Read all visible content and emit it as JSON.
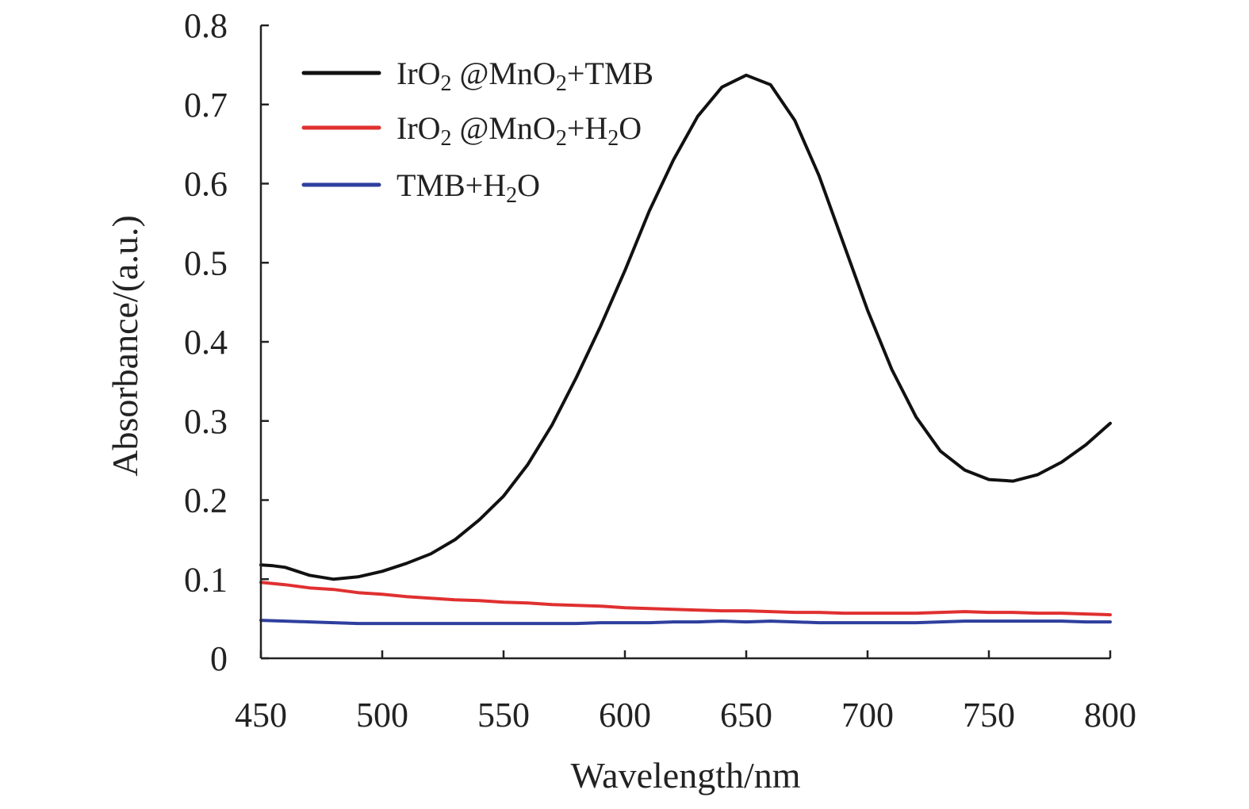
{
  "chart_data": {
    "type": "line",
    "title": "",
    "xlabel": "Wavelength/nm",
    "ylabel": "Absorbance/(a.u.)",
    "xlim": [
      450,
      800
    ],
    "ylim": [
      0,
      0.8
    ],
    "xticks": [
      450,
      500,
      550,
      600,
      650,
      700,
      750,
      800
    ],
    "yticks": [
      0,
      0.1,
      0.2,
      0.3,
      0.4,
      0.5,
      0.6,
      0.7,
      0.8
    ],
    "xtick_labels": [
      "450",
      "500",
      "550",
      "600",
      "650",
      "700",
      "750",
      "800"
    ],
    "ytick_labels": [
      "0",
      "0.1",
      "0.2",
      "0.3",
      "0.4",
      "0.5",
      "0.6",
      "0.7",
      "0.8"
    ],
    "grid": false,
    "legend_position": "top-left",
    "series": [
      {
        "name": "IrO2 @MnO2+TMB",
        "legend": {
          "parts": [
            [
              "IrO",
              ""
            ],
            [
              "2",
              "sub"
            ],
            [
              " @MnO",
              ""
            ],
            [
              "2",
              "sub"
            ],
            [
              "+TMB",
              ""
            ]
          ]
        },
        "color": "#111111",
        "x": [
          450,
          455,
          460,
          470,
          480,
          490,
          500,
          510,
          520,
          530,
          540,
          550,
          560,
          570,
          580,
          590,
          600,
          610,
          620,
          630,
          640,
          650,
          660,
          670,
          680,
          690,
          700,
          710,
          720,
          730,
          740,
          750,
          760,
          770,
          780,
          790,
          800
        ],
        "values": [
          0.118,
          0.117,
          0.115,
          0.105,
          0.1,
          0.103,
          0.11,
          0.12,
          0.132,
          0.15,
          0.175,
          0.205,
          0.245,
          0.295,
          0.355,
          0.42,
          0.49,
          0.565,
          0.63,
          0.685,
          0.722,
          0.737,
          0.725,
          0.68,
          0.61,
          0.525,
          0.44,
          0.365,
          0.305,
          0.262,
          0.238,
          0.226,
          0.224,
          0.232,
          0.248,
          0.27,
          0.297
        ]
      },
      {
        "name": "IrO2 @MnO2+H2O",
        "legend": {
          "parts": [
            [
              "IrO",
              ""
            ],
            [
              "2",
              "sub"
            ],
            [
              " @MnO",
              ""
            ],
            [
              "2",
              "sub"
            ],
            [
              "+H",
              ""
            ],
            [
              "2",
              "sub"
            ],
            [
              "O",
              ""
            ]
          ]
        },
        "color": "#e03030",
        "x": [
          450,
          460,
          470,
          480,
          490,
          500,
          510,
          520,
          530,
          540,
          550,
          560,
          570,
          580,
          590,
          600,
          610,
          620,
          630,
          640,
          650,
          660,
          670,
          680,
          690,
          700,
          710,
          720,
          730,
          740,
          750,
          760,
          770,
          780,
          790,
          800
        ],
        "values": [
          0.096,
          0.093,
          0.089,
          0.087,
          0.083,
          0.081,
          0.078,
          0.076,
          0.074,
          0.073,
          0.071,
          0.07,
          0.068,
          0.067,
          0.066,
          0.064,
          0.063,
          0.062,
          0.061,
          0.06,
          0.06,
          0.059,
          0.058,
          0.058,
          0.057,
          0.057,
          0.057,
          0.057,
          0.058,
          0.059,
          0.058,
          0.058,
          0.057,
          0.057,
          0.056,
          0.055
        ]
      },
      {
        "name": "TMB+H2O",
        "legend": {
          "parts": [
            [
              "TMB+H",
              ""
            ],
            [
              "2",
              "sub"
            ],
            [
              "O",
              ""
            ]
          ]
        },
        "color": "#2e3f9e",
        "x": [
          450,
          460,
          470,
          480,
          490,
          500,
          510,
          520,
          530,
          540,
          550,
          560,
          570,
          580,
          590,
          600,
          610,
          620,
          630,
          640,
          650,
          660,
          670,
          680,
          690,
          700,
          710,
          720,
          730,
          740,
          750,
          760,
          770,
          780,
          790,
          800
        ],
        "values": [
          0.048,
          0.047,
          0.046,
          0.045,
          0.044,
          0.044,
          0.044,
          0.044,
          0.044,
          0.044,
          0.044,
          0.044,
          0.044,
          0.044,
          0.045,
          0.045,
          0.045,
          0.046,
          0.046,
          0.047,
          0.046,
          0.047,
          0.046,
          0.045,
          0.045,
          0.045,
          0.045,
          0.045,
          0.046,
          0.047,
          0.047,
          0.047,
          0.047,
          0.047,
          0.046,
          0.046
        ]
      }
    ]
  }
}
